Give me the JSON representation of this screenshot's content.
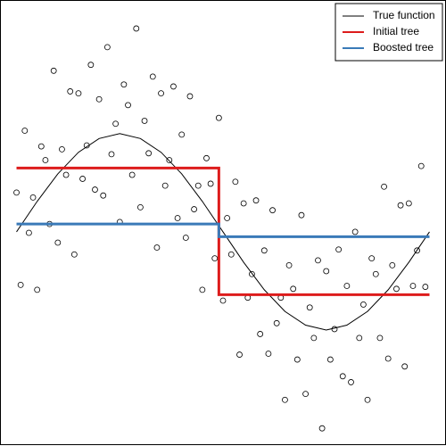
{
  "chart_data": {
    "type": "scatter",
    "xlim": [
      -0.04,
      1.04
    ],
    "ylim": [
      -2.18,
      2.36
    ],
    "legend": "top-right",
    "points": {
      "color": "#000000",
      "x": [
        0,
        0.01,
        0.02,
        0.03,
        0.04,
        0.05,
        0.06,
        0.07,
        0.08,
        0.09,
        0.1,
        0.11,
        0.12,
        0.13,
        0.14,
        0.15,
        0.16,
        0.17,
        0.18,
        0.19,
        0.2,
        0.21,
        0.22,
        0.23,
        0.24,
        0.25,
        0.26,
        0.27,
        0.28,
        0.29,
        0.3,
        0.31,
        0.32,
        0.33,
        0.34,
        0.35,
        0.36,
        0.37,
        0.38,
        0.39,
        0.4,
        0.41,
        0.42,
        0.43,
        0.44,
        0.45,
        0.46,
        0.47,
        0.48,
        0.49,
        0.5,
        0.51,
        0.52,
        0.53,
        0.54,
        0.55,
        0.56,
        0.57,
        0.58,
        0.59,
        0.6,
        0.61,
        0.62,
        0.63,
        0.64,
        0.65,
        0.66,
        0.67,
        0.68,
        0.69,
        0.7,
        0.71,
        0.72,
        0.73,
        0.74,
        0.75,
        0.76,
        0.77,
        0.78,
        0.79,
        0.8,
        0.81,
        0.82,
        0.83,
        0.84,
        0.85,
        0.86,
        0.87,
        0.88,
        0.89,
        0.9,
        0.91,
        0.92,
        0.93,
        0.94,
        0.95,
        0.96,
        0.97,
        0.98,
        0.99
      ],
      "y": [
        0.4,
        -0.54,
        1.03,
        -0.01,
        0.35,
        -0.59,
        0.87,
        0.73,
        0.08,
        1.64,
        -0.11,
        0.84,
        0.58,
        1.43,
        -0.23,
        1.41,
        0.54,
        0.88,
        1.7,
        0.43,
        1.35,
        0.37,
        1.88,
        0.79,
        1.1,
        0.1,
        1.5,
        1.29,
        0.58,
        2.07,
        0.25,
        1.13,
        0.8,
        1.58,
        -0.16,
        1.41,
        0.47,
        0.73,
        1.48,
        0.14,
        0.99,
        -0.06,
        1.38,
        0.23,
        0.47,
        -0.59,
        0.75,
        0.49,
        -0.27,
        1.16,
        -0.7,
        0.14,
        -0.23,
        0.51,
        -1.25,
        0.29,
        -0.67,
        -0.43,
        0.32,
        -1.04,
        -0.19,
        -1.24,
        0.22,
        -0.93,
        -0.67,
        -1.71,
        -0.34,
        -0.58,
        -1.3,
        0.17,
        -1.65,
        -0.77,
        -1.08,
        -0.29,
        -2.0,
        -0.4,
        -1.3,
        -0.99,
        -0.18,
        -1.47,
        -0.55,
        -1.53,
        0,
        -1.08,
        -0.74,
        -1.71,
        -0.27,
        -0.43,
        -1.08,
        0.46,
        -1.29,
        -0.34,
        -0.58,
        0.27,
        -1.37,
        0.29,
        -0.55,
        -0.19,
        0.67,
        -0.56
      ]
    },
    "series": [
      {
        "name": "True function",
        "color": "#000000",
        "width": 1,
        "x": [
          0,
          0.05,
          0.1,
          0.15,
          0.2,
          0.25,
          0.3,
          0.35,
          0.4,
          0.45,
          0.5,
          0.55,
          0.6,
          0.65,
          0.7,
          0.75,
          0.8,
          0.85,
          0.9,
          0.95,
          1
        ],
        "values": [
          0,
          0.31,
          0.59,
          0.81,
          0.95,
          1,
          0.95,
          0.81,
          0.59,
          0.31,
          0,
          -0.31,
          -0.59,
          -0.81,
          -0.95,
          -1,
          -0.95,
          -0.81,
          -0.59,
          -0.31,
          0
        ]
      },
      {
        "name": "Initial tree",
        "color": "#dd1c1c",
        "width": 3,
        "x": [
          0,
          0.49,
          0.49,
          1
        ],
        "values": [
          0.65,
          0.65,
          -0.64,
          -0.64
        ]
      },
      {
        "name": "Boosted tree",
        "color": "#3a7ab8",
        "width": 3,
        "x": [
          0,
          0.49,
          0.49,
          1
        ],
        "values": [
          0.08,
          0.08,
          -0.05,
          -0.05
        ]
      }
    ]
  }
}
